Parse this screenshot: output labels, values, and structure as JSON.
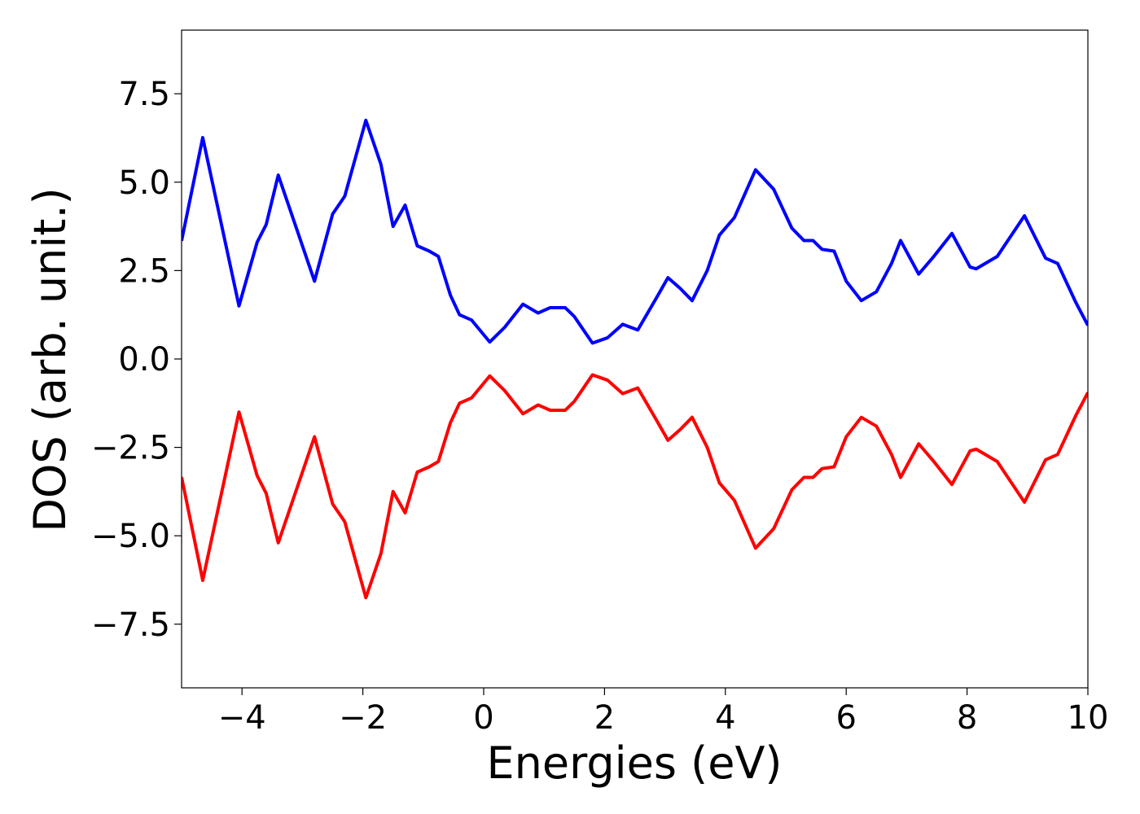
{
  "chart_data": {
    "type": "line",
    "xlabel": "Energies (eV)",
    "ylabel": "DOS (arb. unit.)",
    "x": [
      -5,
      -4.65,
      -4.05,
      -3.75,
      -3.6,
      -3.4,
      -3.1,
      -2.8,
      -2.5,
      -2.3,
      -1.95,
      -1.7,
      -1.5,
      -1.3,
      -1.1,
      -0.9,
      -0.75,
      -0.55,
      -0.4,
      -0.2,
      0.1,
      0.35,
      0.65,
      0.9,
      1.1,
      1.35,
      1.5,
      1.8,
      2.05,
      2.3,
      2.55,
      2.85,
      3.05,
      3.25,
      3.45,
      3.7,
      3.9,
      4.15,
      4.5,
      4.8,
      5.1,
      5.3,
      5.45,
      5.6,
      5.8,
      6.0,
      6.25,
      6.5,
      6.75,
      6.9,
      7.2,
      7.45,
      7.75,
      8.05,
      8.15,
      8.5,
      8.95,
      9.3,
      9.5,
      9.8,
      10
    ],
    "series": [
      {
        "color": "#0000ff",
        "values": [
          3.34,
          6.26,
          1.5,
          3.3,
          3.8,
          5.2,
          3.7,
          2.2,
          4.1,
          4.6,
          6.75,
          5.5,
          3.75,
          4.35,
          3.2,
          3.05,
          2.9,
          1.8,
          1.25,
          1.1,
          0.48,
          0.9,
          1.55,
          1.3,
          1.45,
          1.45,
          1.2,
          0.45,
          0.6,
          0.98,
          0.82,
          1.7,
          2.3,
          2.0,
          1.65,
          2.5,
          3.5,
          4.0,
          5.35,
          4.8,
          3.7,
          3.35,
          3.35,
          3.1,
          3.05,
          2.2,
          1.65,
          1.9,
          2.7,
          3.35,
          2.4,
          2.9,
          3.55,
          2.6,
          2.55,
          2.9,
          4.05,
          2.85,
          2.7,
          1.6,
          0.95
        ]
      },
      {
        "color": "#ff0000",
        "values": [
          -3.34,
          -6.26,
          -1.5,
          -3.3,
          -3.8,
          -5.2,
          -3.7,
          -2.2,
          -4.1,
          -4.6,
          -6.75,
          -5.5,
          -3.75,
          -4.35,
          -3.2,
          -3.05,
          -2.9,
          -1.8,
          -1.25,
          -1.1,
          -0.48,
          -0.9,
          -1.55,
          -1.3,
          -1.45,
          -1.45,
          -1.2,
          -0.45,
          -0.6,
          -0.98,
          -0.82,
          -1.7,
          -2.3,
          -2.0,
          -1.65,
          -2.5,
          -3.5,
          -4.0,
          -5.35,
          -4.8,
          -3.7,
          -3.35,
          -3.35,
          -3.1,
          -3.05,
          -2.2,
          -1.65,
          -1.9,
          -2.7,
          -3.35,
          -2.4,
          -2.9,
          -3.55,
          -2.6,
          -2.55,
          -2.9,
          -4.05,
          -2.85,
          -2.7,
          -1.6,
          -0.95
        ]
      }
    ],
    "xlim": [
      -5,
      10
    ],
    "ylim": [
      -9.3,
      9.3
    ],
    "xticks": [
      {
        "value": -4,
        "label": "−4"
      },
      {
        "value": -2,
        "label": "−2"
      },
      0,
      2,
      4,
      6,
      8,
      10
    ],
    "yticks": [
      {
        "value": -7.5,
        "label": "−7.5"
      },
      {
        "value": -5,
        "label": "−5.0"
      },
      {
        "value": -2.5,
        "label": "−2.5"
      },
      {
        "value": 0,
        "label": "0.0"
      },
      2.5,
      {
        "value": 5,
        "label": "5.0"
      },
      7.5
    ],
    "grid": false
  }
}
